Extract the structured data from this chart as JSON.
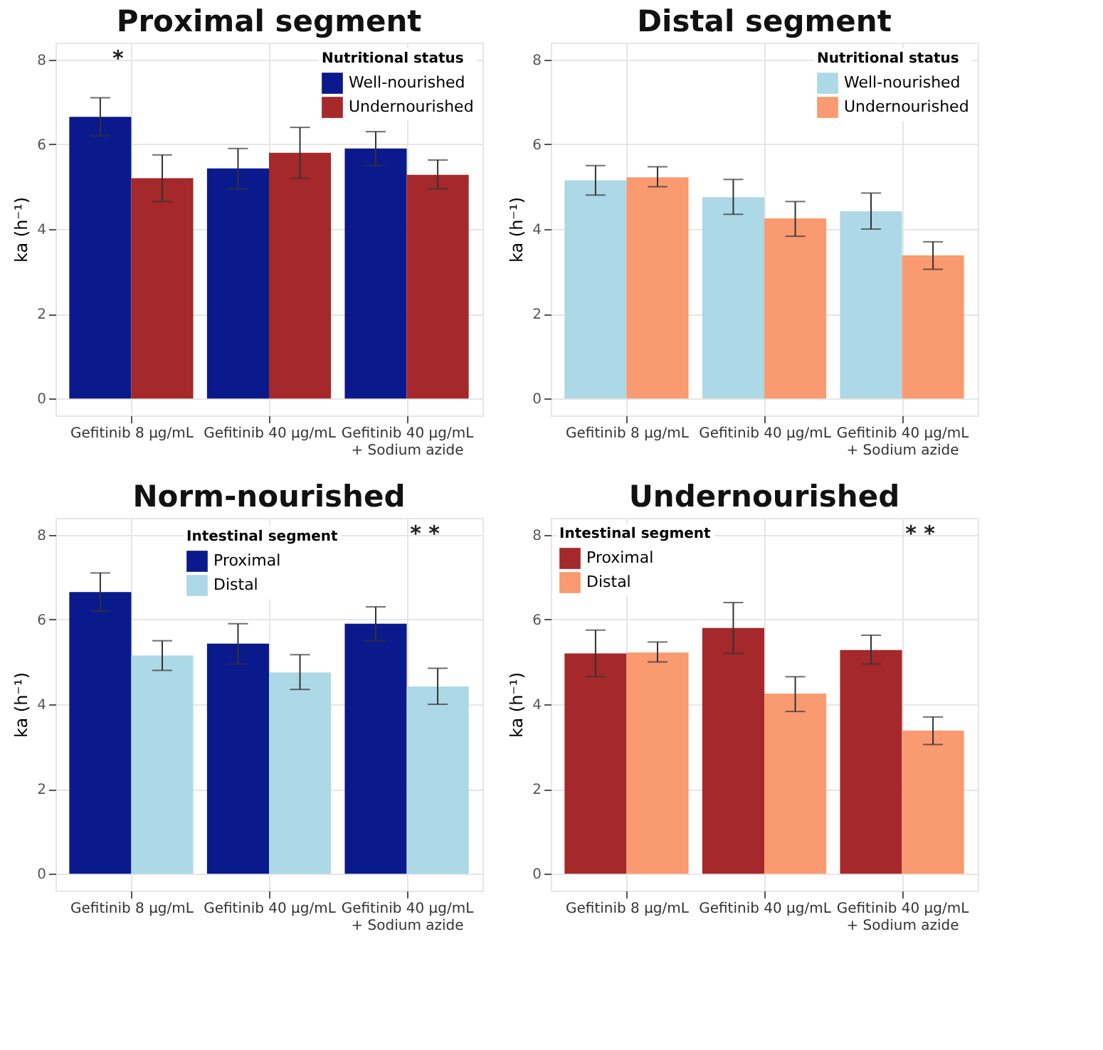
{
  "chart_data": [
    {
      "type": "bar",
      "title": "Proximal segment",
      "ylabel": "ka (h⁻¹)",
      "legend_title": "Nutritional status",
      "legend": "top right",
      "grid": true,
      "ylim": [
        -0.4,
        8.4
      ],
      "yticks": [
        0,
        2,
        4,
        6,
        8
      ],
      "categories": [
        "Gefitinib  8 µg/mL",
        "Gefitinib  40 µg/mL",
        "Gefitinib  40 µg/mL\n+ Sodium azide"
      ],
      "series": [
        {
          "name": "Well-nourished",
          "color": "#0a1a8c",
          "values": [
            6.65,
            5.43,
            5.9
          ],
          "errors": [
            [
              6.2,
              7.1
            ],
            [
              4.95,
              5.9
            ],
            [
              5.5,
              6.3
            ]
          ]
        },
        {
          "name": "Undernourished",
          "color": "#a5282a",
          "values": [
            5.2,
            5.8,
            5.28
          ],
          "errors": [
            [
              4.65,
              5.75
            ],
            [
              5.2,
              6.4
            ],
            [
              4.95,
              5.63
            ]
          ]
        }
      ],
      "annotations": [
        "*"
      ]
    },
    {
      "type": "bar",
      "title": "Distal segment",
      "ylabel": "ka (h⁻¹)",
      "legend_title": "Nutritional status",
      "legend": "top right",
      "grid": true,
      "ylim": [
        -0.4,
        8.4
      ],
      "yticks": [
        0,
        2,
        4,
        6,
        8
      ],
      "categories": [
        "Gefitinib  8 µg/mL",
        "Gefitinib  40 µg/mL",
        "Gefitinib  40 µg/mL\n+ Sodium azide"
      ],
      "series": [
        {
          "name": "Well-nourished",
          "color": "#add8e6",
          "values": [
            5.15,
            4.75,
            4.42
          ],
          "errors": [
            [
              4.8,
              5.5
            ],
            [
              4.35,
              5.17
            ],
            [
              4.0,
              4.85
            ]
          ]
        },
        {
          "name": "Undernourished",
          "color": "#fa9a70",
          "values": [
            5.22,
            4.25,
            3.38
          ],
          "errors": [
            [
              5.0,
              5.47
            ],
            [
              3.83,
              4.65
            ],
            [
              3.05,
              3.7
            ]
          ]
        }
      ]
    },
    {
      "type": "bar",
      "title": "Norm-nourished",
      "ylabel": "ka (h⁻¹)",
      "legend_title": "Intestinal segment",
      "legend": "top",
      "grid": true,
      "ylim": [
        -0.4,
        8.4
      ],
      "yticks": [
        0,
        2,
        4,
        6,
        8
      ],
      "categories": [
        "Gefitinib  8 µg/mL",
        "Gefitinib  40 µg/mL",
        "Gefitinib  40 µg/mL\n+ Sodium azide"
      ],
      "series": [
        {
          "name": "Proximal",
          "color": "#0a1a8c",
          "values": [
            6.65,
            5.43,
            5.9
          ],
          "errors": [
            [
              6.2,
              7.1
            ],
            [
              4.95,
              5.9
            ],
            [
              5.5,
              6.3
            ]
          ]
        },
        {
          "name": "Distal",
          "color": "#add8e6",
          "values": [
            5.15,
            4.75,
            4.42
          ],
          "errors": [
            [
              4.8,
              5.5
            ],
            [
              4.35,
              5.17
            ],
            [
              4.0,
              4.85
            ]
          ]
        }
      ],
      "annotations": [
        "*",
        "*"
      ]
    },
    {
      "type": "bar",
      "title": "Undernourished",
      "ylabel": "ka (h⁻¹)",
      "legend_title": "Intestinal segment",
      "legend": "top left",
      "grid": true,
      "ylim": [
        -0.4,
        8.4
      ],
      "yticks": [
        0,
        2,
        4,
        6,
        8
      ],
      "categories": [
        "Gefitinib  8 µg/mL",
        "Gefitinib  40 µg/mL",
        "Gefitinib  40 µg/mL\n+ Sodium azide"
      ],
      "series": [
        {
          "name": "Proximal",
          "color": "#a5282a",
          "values": [
            5.2,
            5.8,
            5.28
          ],
          "errors": [
            [
              4.65,
              5.75
            ],
            [
              5.2,
              6.4
            ],
            [
              4.95,
              5.63
            ]
          ]
        },
        {
          "name": "Distal",
          "color": "#fa9a70",
          "values": [
            5.22,
            4.25,
            3.38
          ],
          "errors": [
            [
              5.0,
              5.47
            ],
            [
              3.83,
              4.65
            ],
            [
              3.05,
              3.7
            ]
          ]
        }
      ],
      "annotations": [
        "*",
        "*"
      ]
    }
  ]
}
